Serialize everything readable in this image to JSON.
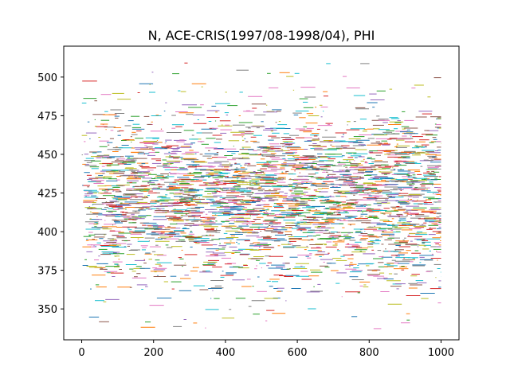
{
  "chart_data": {
    "type": "scatter",
    "title": "N, ACE-CRIS(1997/08-1998/04), PHI",
    "xlabel": "",
    "ylabel": "",
    "xlim": [
      -50,
      1050
    ],
    "ylim": [
      330,
      520
    ],
    "x_ticks": [
      0,
      200,
      400,
      600,
      800,
      1000
    ],
    "x_tick_labels": [
      "0",
      "200",
      "400",
      "600",
      "800",
      "1000"
    ],
    "y_ticks": [
      350,
      375,
      400,
      425,
      450,
      475,
      500
    ],
    "y_tick_labels": [
      "350",
      "375",
      "400",
      "425",
      "450",
      "475",
      "500"
    ],
    "grid": false,
    "legend": "none",
    "x_range": [
      0,
      1000
    ],
    "y_center": 422,
    "y_spread": 28,
    "y_min": 337,
    "y_max": 511,
    "series_colors": [
      "#1f77b4",
      "#ff7f0e",
      "#2ca02c",
      "#d62728",
      "#9467bd",
      "#8c564b",
      "#e377c2",
      "#7f7f7f",
      "#bcbd22",
      "#17becf"
    ]
  }
}
